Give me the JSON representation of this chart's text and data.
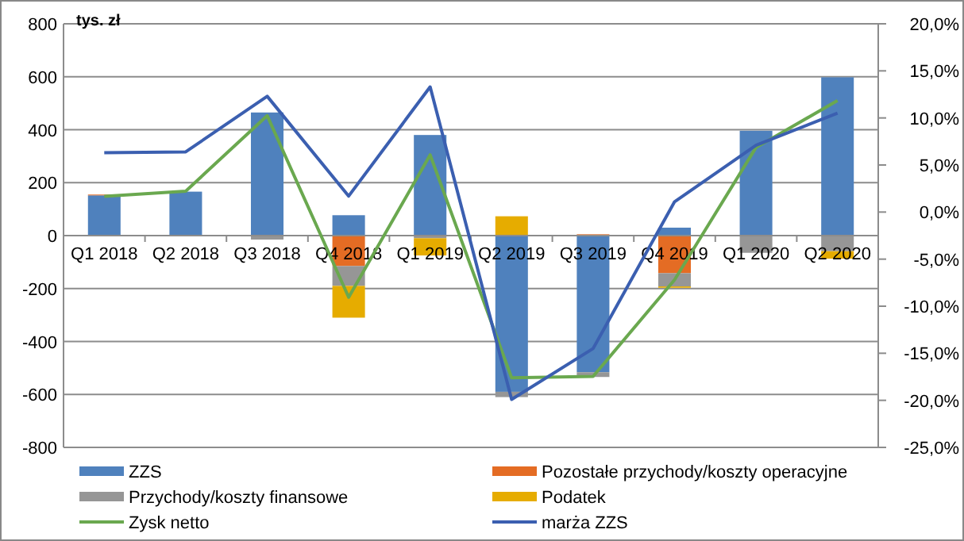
{
  "chart_data": {
    "type": "bar",
    "stacked": true,
    "ylabel": "tys. zł",
    "categories": [
      "Q1 2018",
      "Q2 2018",
      "Q3 2018",
      "Q4 2018",
      "Q1 2019",
      "Q2 2019",
      "Q3 2019",
      "Q4 2019",
      "Q1 2020",
      "Q2 2020"
    ],
    "series": [
      {
        "name": "ZZS",
        "color": "#4f81bd",
        "values": [
          152,
          166,
          465,
          77,
          380,
          -590,
          -516,
          30,
          396,
          598
        ]
      },
      {
        "name": "Pozostałe przychody/koszty operacyjne",
        "color": "#e46c24",
        "values": [
          3,
          0,
          0,
          -115,
          0,
          0,
          5,
          -142,
          0,
          0
        ]
      },
      {
        "name": "Przychody/koszty finansowe",
        "color": "#969696",
        "values": [
          0,
          0,
          -15,
          -75,
          -10,
          -20,
          -18,
          -50,
          -65,
          -59
        ]
      },
      {
        "name": "Podatek",
        "color": "#e6ac00",
        "values": [
          0,
          0,
          0,
          -120,
          -65,
          73,
          null,
          -5,
          0,
          -28
        ]
      },
      {
        "name": "Zysk netto",
        "type": "line",
        "color": "#6aa84f",
        "values": [
          148,
          168,
          453,
          -233,
          305,
          -537,
          -532,
          -167,
          333,
          510
        ]
      },
      {
        "name": "marża ZZS",
        "type": "line",
        "axis": "y2",
        "color": "#3b5fb0",
        "values": [
          6.3,
          6.4,
          12.3,
          1.7,
          13.3,
          -19.9,
          -14.5,
          1.1,
          7.1,
          10.5
        ]
      }
    ],
    "ylim": [
      -800,
      800
    ],
    "yticks": [
      -800,
      -600,
      -400,
      -200,
      0,
      200,
      400,
      600,
      800
    ],
    "y2lim": [
      -25,
      20
    ],
    "y2ticks": [
      {
        "value": -25,
        "label": "-25,0%"
      },
      {
        "value": -20,
        "label": "-20,0%"
      },
      {
        "value": -15,
        "label": "-15,0%"
      },
      {
        "value": -10,
        "label": "-10,0%"
      },
      {
        "value": -5,
        "label": "-5,0%"
      },
      {
        "value": 0,
        "label": "0,0%"
      },
      {
        "value": 5,
        "label": "5,0%"
      },
      {
        "value": 10,
        "label": "10,0%"
      },
      {
        "value": 15,
        "label": "15,0%"
      },
      {
        "value": 20,
        "label": "20,0%"
      }
    ],
    "grid": "y",
    "legend": "bottom",
    "marker": "none"
  }
}
